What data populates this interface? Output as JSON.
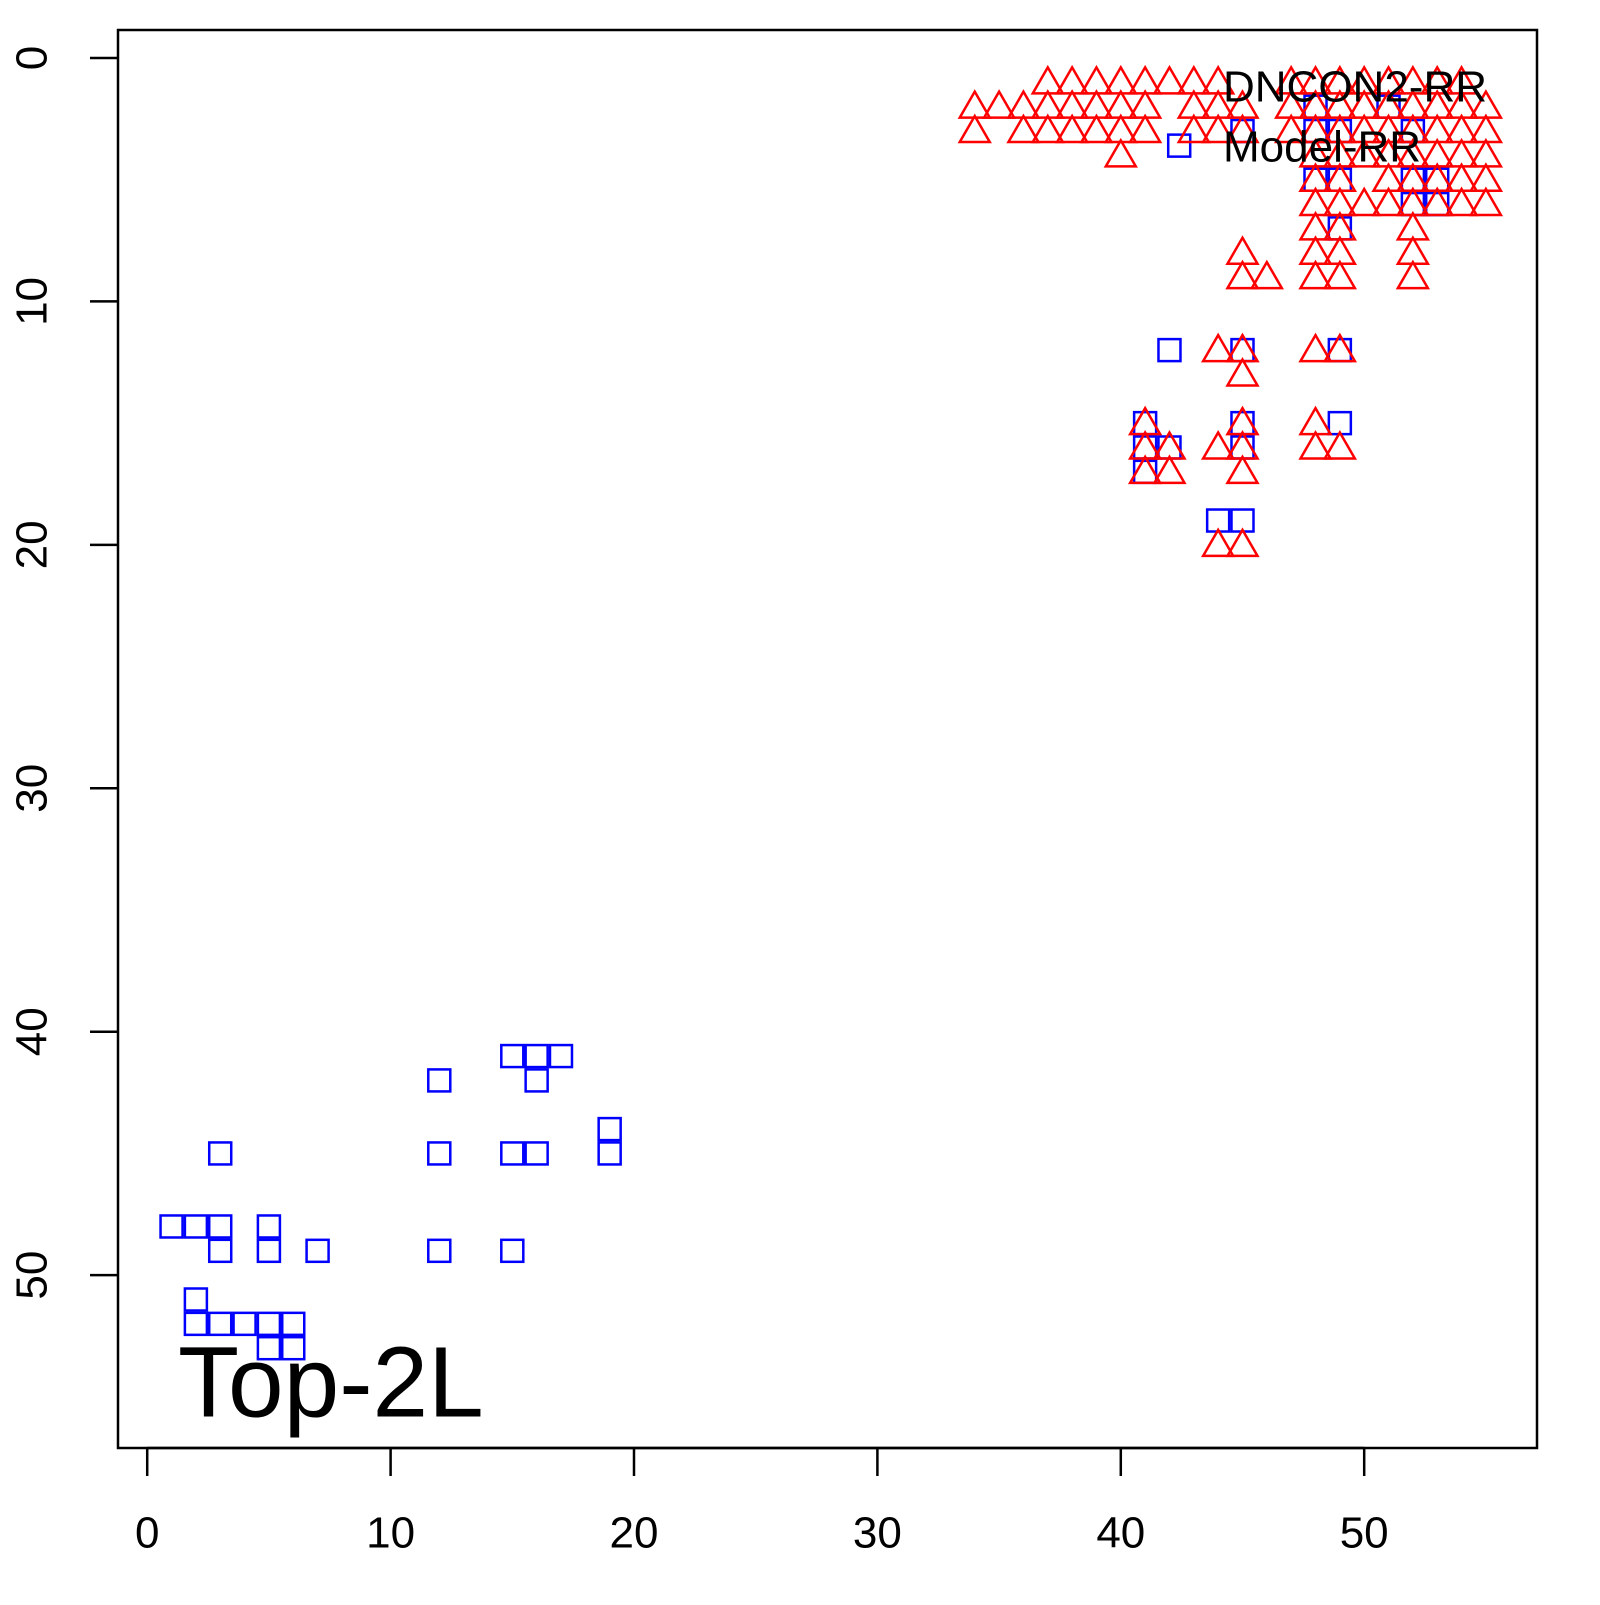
{
  "chart_data": {
    "type": "scatter",
    "annotation": "Top-2L",
    "legend": "topright",
    "xlim": [
      -1.2,
      57.1
    ],
    "ylim": [
      57.1,
      -1.15
    ],
    "xticks": [
      0,
      10,
      20,
      30,
      40,
      50
    ],
    "yticks": [
      0,
      10,
      20,
      30,
      40,
      50
    ],
    "grid": false,
    "series": [
      {
        "name": "Model-RR",
        "color": "#0000ff",
        "marker": "square",
        "x": [
          1,
          2,
          3,
          3,
          5,
          5,
          7,
          3,
          2,
          2,
          3,
          4,
          5,
          6,
          5,
          6,
          12,
          12,
          12,
          15,
          16,
          17,
          16,
          15,
          16,
          15,
          19,
          19,
          42.4,
          42,
          41,
          41,
          41,
          42,
          45,
          45,
          45,
          44,
          45,
          49,
          49,
          45,
          48,
          48,
          48,
          49,
          49,
          49,
          51,
          52,
          52,
          52,
          53,
          53
        ],
        "y": [
          48,
          48,
          48,
          49,
          48,
          49,
          49,
          45,
          51,
          52,
          52,
          52,
          52,
          52,
          53,
          53,
          42,
          45,
          49,
          41,
          41,
          41,
          42,
          45,
          45,
          49,
          44,
          45,
          3.6,
          12,
          15,
          16,
          17,
          16,
          15,
          16,
          12,
          19,
          19,
          12,
          15,
          3,
          2,
          3,
          5,
          3,
          5,
          7,
          2,
          3,
          5,
          6,
          5,
          6
        ]
      },
      {
        "name": "DNCON2-RR",
        "color": "#ff0000",
        "marker": "triangle",
        "x": [
          37,
          38,
          39,
          40,
          41,
          42,
          43,
          44,
          47,
          48,
          49,
          50,
          51,
          52,
          53,
          54,
          34,
          35,
          36,
          37,
          38,
          39,
          40,
          41,
          43,
          44,
          45,
          47,
          48,
          49,
          50,
          51,
          52,
          53,
          54,
          55,
          34,
          36,
          37,
          38,
          39,
          40,
          41,
          43,
          44,
          45,
          47,
          48,
          49,
          50,
          51,
          52,
          53,
          54,
          55,
          40,
          48,
          49,
          50,
          51,
          52,
          53,
          54,
          55,
          48,
          49,
          51,
          52,
          53,
          54,
          55,
          48,
          49,
          50,
          51,
          52,
          53,
          54,
          55,
          48,
          49,
          52,
          45,
          48,
          49,
          52,
          45,
          46,
          48,
          49,
          52,
          44,
          45,
          48,
          49,
          45,
          41,
          45,
          48,
          41,
          42,
          44,
          45,
          48,
          49,
          41,
          42,
          45,
          44,
          45
        ],
        "y": [
          1,
          1,
          1,
          1,
          1,
          1,
          1,
          1,
          1,
          1,
          1,
          1,
          1,
          1,
          1,
          1,
          2,
          2,
          2,
          2,
          2,
          2,
          2,
          2,
          2,
          2,
          2,
          2,
          2,
          2,
          2,
          2,
          2,
          2,
          2,
          2,
          3,
          3,
          3,
          3,
          3,
          3,
          3,
          3,
          3,
          3,
          3,
          3,
          3,
          3,
          3,
          3,
          3,
          3,
          3,
          4,
          4,
          4,
          4,
          4,
          4,
          4,
          4,
          4,
          5,
          5,
          5,
          5,
          5,
          5,
          5,
          6,
          6,
          6,
          6,
          6,
          6,
          6,
          6,
          7,
          7,
          7,
          8,
          8,
          8,
          8,
          9,
          9,
          9,
          9,
          9,
          12,
          12,
          12,
          12,
          13,
          15,
          15,
          15,
          16,
          16,
          16,
          16,
          16,
          16,
          17,
          17,
          17,
          20,
          20
        ]
      }
    ]
  }
}
